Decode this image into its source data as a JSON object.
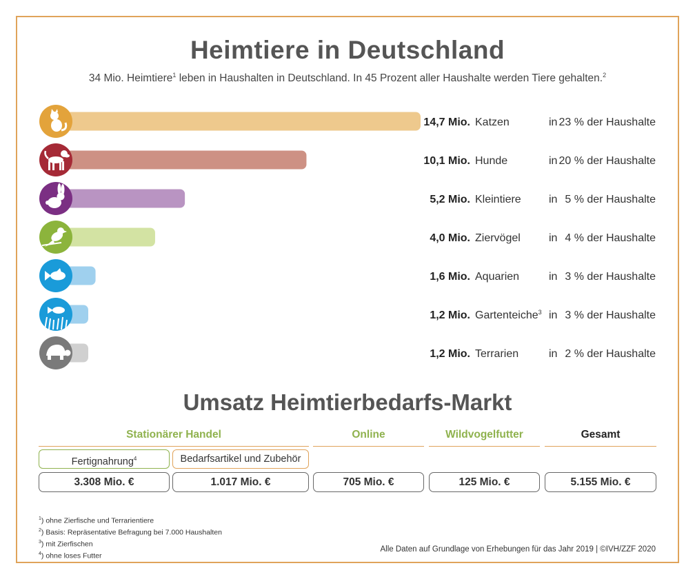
{
  "title": "Heimtiere in Deutschland",
  "subtitle": {
    "part1": "34 Mio. Heimtiere",
    "sup1": "1",
    "part2": " leben in Haushalten in Deutschland. In 45 Prozent aller Haushalte werden Tiere gehalten.",
    "sup2": "2"
  },
  "chart_data": {
    "type": "bar",
    "orientation": "horizontal",
    "title": "Heimtiere in Deutschland",
    "unit": "Mio.",
    "categories": [
      "Katzen",
      "Hunde",
      "Kleintiere",
      "Ziervögel",
      "Aquarien",
      "Gartenteiche",
      "Terrarien"
    ],
    "values": [
      14.7,
      10.1,
      5.2,
      4.0,
      1.6,
      1.2,
      1.2
    ],
    "value_labels": [
      "14,7 Mio.",
      "10,1 Mio.",
      "5,2 Mio.",
      "4,0 Mio.",
      "1,6 Mio.",
      "1,2 Mio.",
      "1,2 Mio."
    ],
    "category_sups": [
      "",
      "",
      "",
      "",
      "",
      "3",
      ""
    ],
    "household_prefix": [
      "in",
      "in",
      "in",
      "in",
      "in",
      "in",
      "in"
    ],
    "household_labels": [
      "23 % der Haushalte",
      "20 % der Haushalte",
      "5 % der Haushalte",
      "4 % der Haushalte",
      "3 % der Haushalte",
      "3 % der Haushalte",
      "2 % der Haushalte"
    ],
    "household_percent": [
      23,
      20,
      5,
      4,
      3,
      3,
      2
    ],
    "icons": [
      "cat-icon",
      "dog-icon",
      "rabbit-icon",
      "bird-icon",
      "fish-icon",
      "pond-fish-icon",
      "turtle-icon"
    ],
    "bar_colors": [
      "#eec98d",
      "#cd9184",
      "#b994c2",
      "#d3e3a3",
      "#9fd0ee",
      "#9fd0ee",
      "#d0d0d0"
    ],
    "circle_colors": [
      "#e3a33b",
      "#a52a36",
      "#7b2f83",
      "#8cb43c",
      "#1a9bd9",
      "#1a9bd9",
      "#7a7a7a"
    ],
    "xlim": [
      0,
      14.7
    ]
  },
  "umsatz": {
    "title": "Umsatz Heimtierbedarfs-Markt",
    "columns": [
      {
        "label": "Stationärer Handel"
      },
      {
        "label": "Online"
      },
      {
        "label": "Wildvogelfutter"
      },
      {
        "label": "Gesamt"
      }
    ],
    "sub": {
      "fertig": "Fertignahrung",
      "fertig_sup": "4",
      "bedarf": "Bedarfsartikel und Zubehör"
    },
    "amounts": [
      "3.308 Mio. €",
      "1.017 Mio. €",
      "705 Mio. €",
      "125 Mio. €",
      "5.155 Mio. €"
    ]
  },
  "footnotes": [
    {
      "sup": "1",
      "text": ") ohne Zierfische und Terrarientiere"
    },
    {
      "sup": "2",
      "text": ") Basis: Repräsentative Befragung bei 7.000 Haushalten"
    },
    {
      "sup": "3",
      "text": ") mit Zierfischen"
    },
    {
      "sup": "4",
      "text": ") ohne loses Futter"
    }
  ],
  "source": "Alle Daten auf Grundlage von Erhebungen für das Jahr 2019 | ©IVH/ZZF 2020",
  "colors": {
    "frame": "#e0a35a",
    "green": "#8fb24e"
  }
}
